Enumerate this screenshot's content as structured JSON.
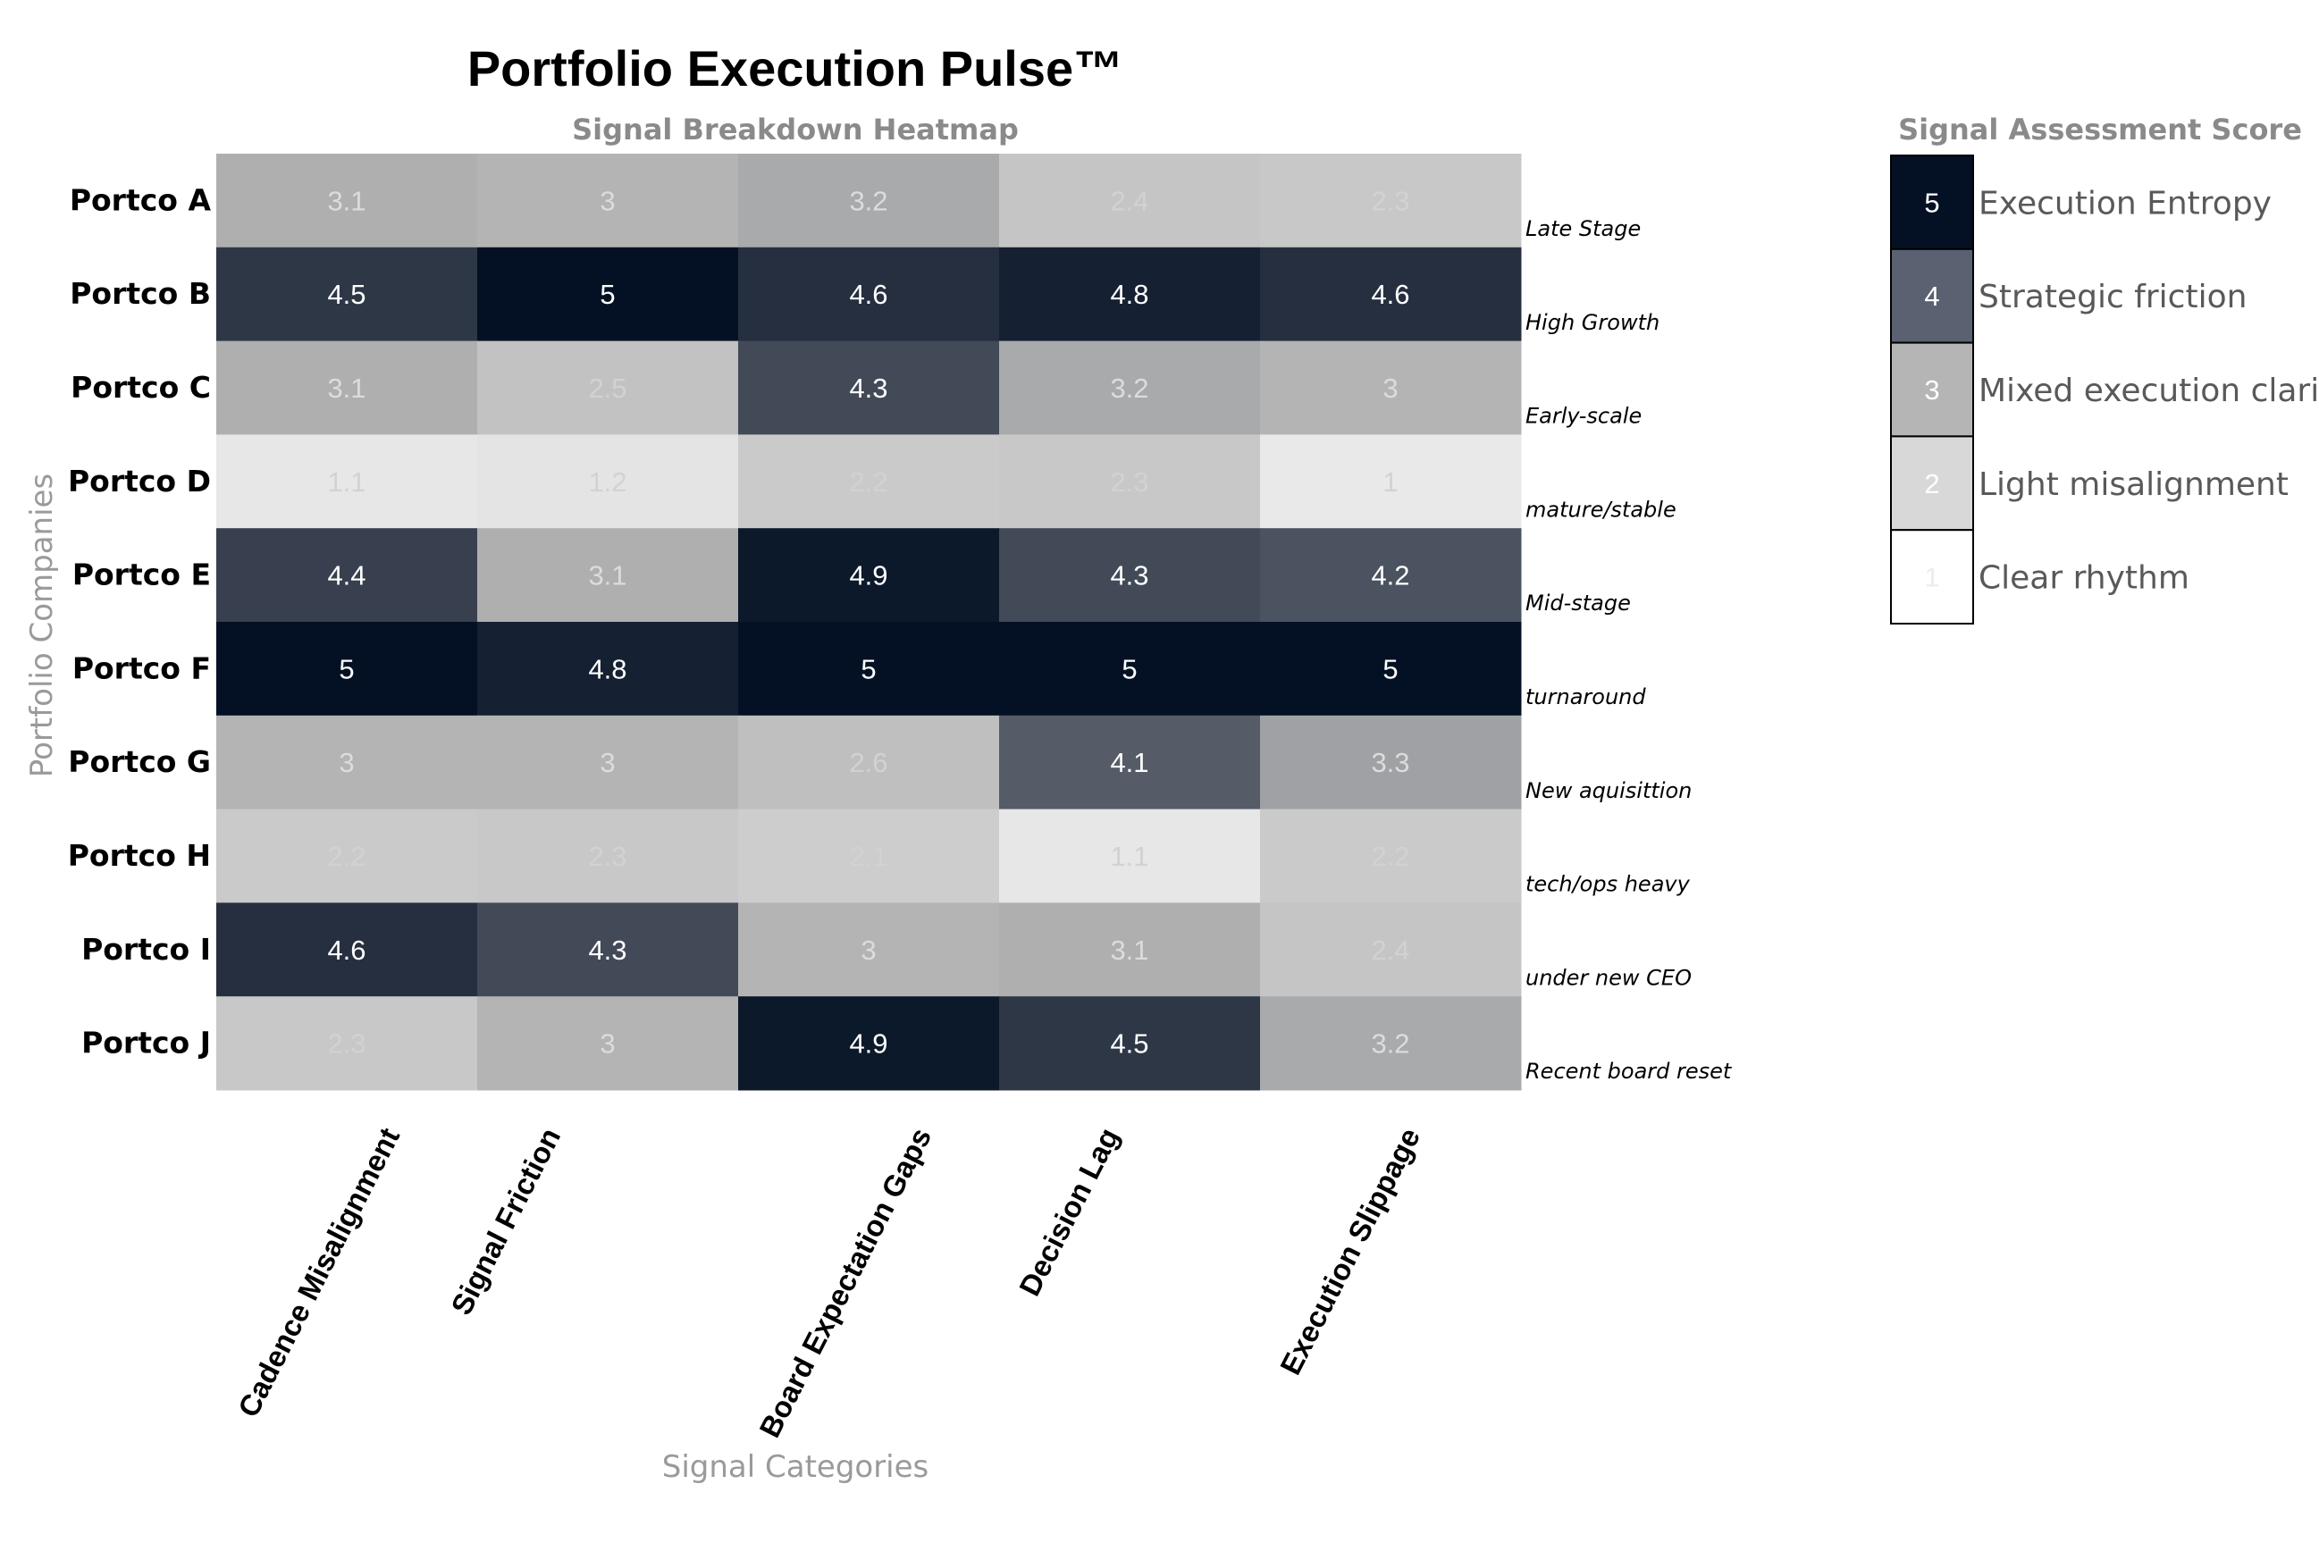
{
  "chart_data": {
    "type": "heatmap",
    "title": "Portfolio Execution Pulse™",
    "subtitle": "Signal Breakdown Heatmap",
    "xlabel": "Signal Categories",
    "ylabel": "Portfolio Companies",
    "columns": [
      "Cadence Misalignment",
      "Signal Friction",
      "Board Expectation Gaps",
      "Decision Lag",
      "Execution Slippage"
    ],
    "rows": [
      "Portco A",
      "Portco B",
      "Portco C",
      "Portco D",
      "Portco E",
      "Portco F",
      "Portco G",
      "Portco H",
      "Portco I",
      "Portco J"
    ],
    "row_annotations": [
      "Late Stage",
      "High Growth",
      "Early-scale",
      "mature/stable",
      "Mid-stage",
      "turnaround",
      "New aquisittion",
      "tech/ops heavy",
      "under new CEO",
      "Recent board reset"
    ],
    "values": [
      [
        3.1,
        3,
        3.2,
        2.4,
        2.3
      ],
      [
        4.5,
        5,
        4.6,
        4.8,
        4.6
      ],
      [
        3.1,
        2.5,
        4.3,
        3.2,
        3
      ],
      [
        1.1,
        1.2,
        2.2,
        2.3,
        1
      ],
      [
        4.4,
        3.1,
        4.9,
        4.3,
        4.2
      ],
      [
        5,
        4.8,
        5,
        5,
        5
      ],
      [
        3,
        3,
        2.6,
        4.1,
        3.3
      ],
      [
        2.2,
        2.3,
        2.1,
        1.1,
        2.2
      ],
      [
        4.6,
        4.3,
        3,
        3.1,
        2.4
      ],
      [
        2.3,
        3,
        4.9,
        4.5,
        3.2
      ]
    ],
    "value_range": [
      1,
      5
    ],
    "legend": {
      "title": "Signal Assessment Score",
      "position": "right",
      "items": [
        {
          "value": "5",
          "label": "Execution Entropy",
          "color": "#041124"
        },
        {
          "value": "4",
          "label": "Strategic friction",
          "color": "#5a6170"
        },
        {
          "value": "3",
          "label": "Mixed execution clarity",
          "color": "#b5b5b5"
        },
        {
          "value": "2",
          "label": "Light misalignment",
          "color": "#d8d8d8"
        },
        {
          "value": "1",
          "label": "Clear rhythm",
          "color": "#ffffff"
        }
      ]
    },
    "colorscale": [
      {
        "v": 1,
        "color": "#e9e9e9"
      },
      {
        "v": 2,
        "color": "#d0d0d0"
      },
      {
        "v": 3,
        "color": "#b4b4b4"
      },
      {
        "v": 3.2,
        "color": "#a9aaac"
      },
      {
        "v": 4,
        "color": "#5f6571"
      },
      {
        "v": 4.5,
        "color": "#2e3746"
      },
      {
        "v": 5,
        "color": "#041124"
      }
    ]
  }
}
